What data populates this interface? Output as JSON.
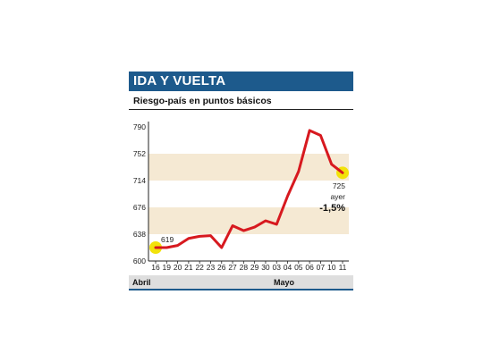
{
  "title": "IDA Y VUELTA",
  "subtitle": "Riesgo-país en puntos básicos",
  "months": [
    "Abril",
    "Mayo"
  ],
  "colors": {
    "title_bg": "#1d5a8c",
    "line": "#d7191f",
    "band": "#f5e9d3",
    "marker": "#f2e20a"
  },
  "annotations": {
    "start_value": "619",
    "end_value": "725",
    "ayer": "ayer",
    "change": "-1,5%"
  },
  "chart_data": {
    "type": "line",
    "title": "IDA Y VUELTA",
    "ylabel": "Riesgo-país en puntos básicos",
    "xlabel": "",
    "ylim": [
      600,
      790
    ],
    "yticks": [
      600,
      638,
      676,
      714,
      752,
      790
    ],
    "categories": [
      "16",
      "19",
      "20",
      "21",
      "22",
      "23",
      "26",
      "27",
      "28",
      "29",
      "30",
      "03",
      "04",
      "05",
      "06",
      "07",
      "10",
      "11"
    ],
    "values": [
      619,
      619,
      622,
      632,
      635,
      636,
      619,
      650,
      643,
      648,
      657,
      652,
      692,
      727,
      785,
      778,
      737,
      725
    ],
    "grid": "horizontal bands",
    "legend": "none"
  }
}
